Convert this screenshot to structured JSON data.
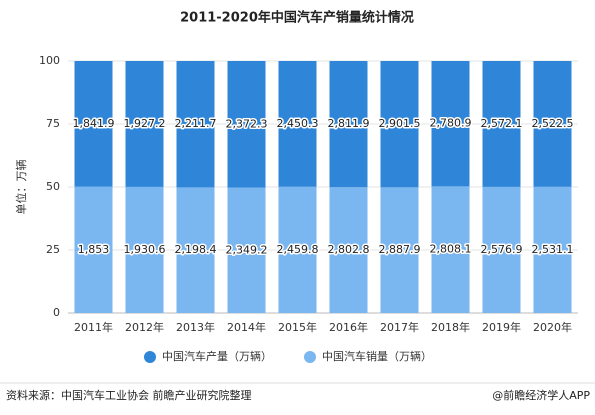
{
  "chart_data": {
    "type": "bar",
    "stacked": true,
    "normalize": true,
    "title": "2011-2020年中国汽车产销量统计情况",
    "y_label": "单位：万辆",
    "categories": [
      "2011年",
      "2012年",
      "2013年",
      "2014年",
      "2015年",
      "2016年",
      "2017年",
      "2018年",
      "2019年",
      "2020年"
    ],
    "series": [
      {
        "name": "中国汽车产量（万辆）",
        "color": "#2f86d8",
        "values": [
          1841.9,
          1927.2,
          2211.7,
          2372.3,
          2450.3,
          2811.9,
          2901.5,
          2780.9,
          2572.1,
          2522.5
        ],
        "value_labels": [
          "1,841.9",
          "1,927.2",
          "2,211.7",
          "2,372.3",
          "2,450.3",
          "2,811.9",
          "2,901.5",
          "2,780.9",
          "2,572.1",
          "2,522.5"
        ]
      },
      {
        "name": "中国汽车销量（万辆）",
        "color": "#7ab6ef",
        "values": [
          1853,
          1930.6,
          2198.4,
          2349.2,
          2459.8,
          2802.8,
          2887.9,
          2808.1,
          2576.9,
          2531.1
        ],
        "value_labels": [
          "1,853",
          "1,930.6",
          "2,198.4",
          "2,349.2",
          "2,459.8",
          "2,802.8",
          "2,887.9",
          "2,808.1",
          "2,576.9",
          "2,531.1"
        ]
      }
    ],
    "ylim": [
      0,
      100
    ],
    "yticks": [
      0,
      25,
      50,
      75,
      100
    ],
    "grid": true,
    "legend": "bottom"
  },
  "footer": {
    "source": "资料来源：中国汽车工业协会 前瞻产业研究院整理",
    "credit": "@前瞻经济学人APP"
  }
}
